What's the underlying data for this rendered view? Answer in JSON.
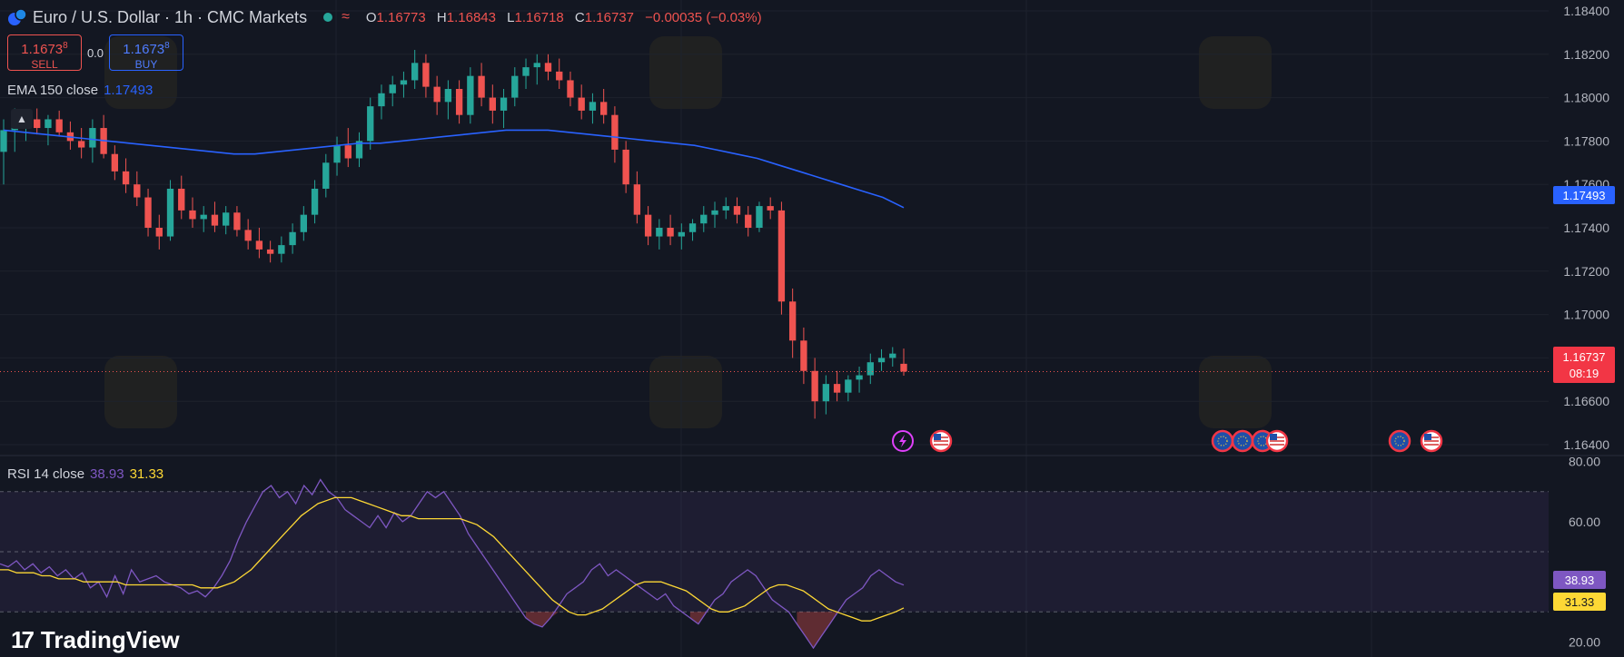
{
  "header": {
    "title": "Euro / U.S. Dollar · 1h · CMC Markets",
    "o_label": "O",
    "o": "1.16773",
    "h_label": "H",
    "h": "1.16843",
    "l_label": "L",
    "l": "1.16718",
    "c_label": "C",
    "c": "1.16737",
    "change": "−0.00035 (−0.03%)"
  },
  "trade": {
    "sell_price": "1.1673",
    "sell_sup": "8",
    "sell_label": "SELL",
    "spread": "0.0",
    "buy_price": "1.1673",
    "buy_sup": "8",
    "buy_label": "BUY"
  },
  "ema": {
    "label": "EMA 150 close",
    "value": "1.17493"
  },
  "rsi": {
    "label": "RSI 14 close",
    "value": "38.93",
    "ma_value": "31.33"
  },
  "badges": {
    "ema_price": "1.17493",
    "current_price": "1.16737",
    "countdown": "08:19",
    "rsi_value": "38.93",
    "rsi_ma": "31.33"
  },
  "logo": {
    "text": "TradingView",
    "mark": "17"
  },
  "colors": {
    "background": "#131722",
    "up": "#26a69a",
    "down": "#ef5350",
    "ema": "#2962ff",
    "rsi": "#7e57c2",
    "rsi_ma": "#fdd835"
  },
  "chart_data": {
    "type": "candlestick",
    "symbol": "Euro / U.S. Dollar",
    "timeframe": "1h",
    "price_axis": {
      "ticks": [
        1.164,
        1.166,
        1.168,
        1.17,
        1.172,
        1.174,
        1.176,
        1.178,
        1.18,
        1.182,
        1.184
      ],
      "tick_labels": [
        "1.16400",
        "1.16600",
        "1.16800",
        "1.17000",
        "1.17200",
        "1.17400",
        "1.17600",
        "1.17800",
        "1.18000",
        "1.18200",
        "1.18400"
      ],
      "range": [
        1.1635,
        1.1845
      ]
    },
    "candles": [
      {
        "o": 1.1775,
        "h": 1.179,
        "l": 1.176,
        "c": 1.1785
      },
      {
        "o": 1.1785,
        "h": 1.1795,
        "l": 1.1775,
        "c": 1.1788
      },
      {
        "o": 1.1788,
        "h": 1.1793,
        "l": 1.178,
        "c": 1.179
      },
      {
        "o": 1.179,
        "h": 1.1795,
        "l": 1.1783,
        "c": 1.1786
      },
      {
        "o": 1.1786,
        "h": 1.1792,
        "l": 1.1778,
        "c": 1.179
      },
      {
        "o": 1.179,
        "h": 1.1794,
        "l": 1.1782,
        "c": 1.1784
      },
      {
        "o": 1.1784,
        "h": 1.1789,
        "l": 1.1776,
        "c": 1.178
      },
      {
        "o": 1.178,
        "h": 1.1786,
        "l": 1.1772,
        "c": 1.1777
      },
      {
        "o": 1.1777,
        "h": 1.179,
        "l": 1.177,
        "c": 1.1786
      },
      {
        "o": 1.1786,
        "h": 1.1792,
        "l": 1.1772,
        "c": 1.1774
      },
      {
        "o": 1.1774,
        "h": 1.1778,
        "l": 1.1762,
        "c": 1.1766
      },
      {
        "o": 1.1766,
        "h": 1.1772,
        "l": 1.1756,
        "c": 1.176
      },
      {
        "o": 1.176,
        "h": 1.1766,
        "l": 1.175,
        "c": 1.1754
      },
      {
        "o": 1.1754,
        "h": 1.1758,
        "l": 1.1736,
        "c": 1.174
      },
      {
        "o": 1.174,
        "h": 1.1746,
        "l": 1.173,
        "c": 1.1736
      },
      {
        "o": 1.1736,
        "h": 1.1762,
        "l": 1.1734,
        "c": 1.1758
      },
      {
        "o": 1.1758,
        "h": 1.1764,
        "l": 1.1744,
        "c": 1.1748
      },
      {
        "o": 1.1748,
        "h": 1.1754,
        "l": 1.174,
        "c": 1.1744
      },
      {
        "o": 1.1744,
        "h": 1.175,
        "l": 1.1738,
        "c": 1.1746
      },
      {
        "o": 1.1746,
        "h": 1.1752,
        "l": 1.1738,
        "c": 1.1741
      },
      {
        "o": 1.1741,
        "h": 1.175,
        "l": 1.1737,
        "c": 1.1747
      },
      {
        "o": 1.1747,
        "h": 1.175,
        "l": 1.1736,
        "c": 1.1739
      },
      {
        "o": 1.1739,
        "h": 1.1744,
        "l": 1.173,
        "c": 1.1734
      },
      {
        "o": 1.1734,
        "h": 1.174,
        "l": 1.1726,
        "c": 1.173
      },
      {
        "o": 1.173,
        "h": 1.1734,
        "l": 1.1724,
        "c": 1.1728
      },
      {
        "o": 1.1728,
        "h": 1.1736,
        "l": 1.1724,
        "c": 1.1732
      },
      {
        "o": 1.1732,
        "h": 1.1742,
        "l": 1.1728,
        "c": 1.1738
      },
      {
        "o": 1.1738,
        "h": 1.175,
        "l": 1.1734,
        "c": 1.1746
      },
      {
        "o": 1.1746,
        "h": 1.1762,
        "l": 1.1742,
        "c": 1.1758
      },
      {
        "o": 1.1758,
        "h": 1.1774,
        "l": 1.1754,
        "c": 1.177
      },
      {
        "o": 1.177,
        "h": 1.1782,
        "l": 1.1764,
        "c": 1.1778
      },
      {
        "o": 1.1778,
        "h": 1.1786,
        "l": 1.1768,
        "c": 1.1772
      },
      {
        "o": 1.1772,
        "h": 1.1784,
        "l": 1.1768,
        "c": 1.178
      },
      {
        "o": 1.178,
        "h": 1.18,
        "l": 1.1776,
        "c": 1.1796
      },
      {
        "o": 1.1796,
        "h": 1.1806,
        "l": 1.179,
        "c": 1.1802
      },
      {
        "o": 1.1802,
        "h": 1.181,
        "l": 1.1796,
        "c": 1.1806
      },
      {
        "o": 1.1806,
        "h": 1.1812,
        "l": 1.18,
        "c": 1.1808
      },
      {
        "o": 1.1808,
        "h": 1.1822,
        "l": 1.1804,
        "c": 1.1816
      },
      {
        "o": 1.1816,
        "h": 1.182,
        "l": 1.18,
        "c": 1.1805
      },
      {
        "o": 1.1805,
        "h": 1.181,
        "l": 1.1792,
        "c": 1.1798
      },
      {
        "o": 1.1798,
        "h": 1.1808,
        "l": 1.179,
        "c": 1.1804
      },
      {
        "o": 1.1804,
        "h": 1.1808,
        "l": 1.1788,
        "c": 1.1792
      },
      {
        "o": 1.1792,
        "h": 1.1814,
        "l": 1.1788,
        "c": 1.181
      },
      {
        "o": 1.181,
        "h": 1.1816,
        "l": 1.1796,
        "c": 1.18
      },
      {
        "o": 1.18,
        "h": 1.1806,
        "l": 1.1788,
        "c": 1.1794
      },
      {
        "o": 1.1794,
        "h": 1.1804,
        "l": 1.1786,
        "c": 1.18
      },
      {
        "o": 1.18,
        "h": 1.1814,
        "l": 1.1796,
        "c": 1.181
      },
      {
        "o": 1.181,
        "h": 1.1818,
        "l": 1.1804,
        "c": 1.1814
      },
      {
        "o": 1.1814,
        "h": 1.182,
        "l": 1.1806,
        "c": 1.1816
      },
      {
        "o": 1.1816,
        "h": 1.182,
        "l": 1.1808,
        "c": 1.1812
      },
      {
        "o": 1.1812,
        "h": 1.1818,
        "l": 1.1804,
        "c": 1.1808
      },
      {
        "o": 1.1808,
        "h": 1.1812,
        "l": 1.1796,
        "c": 1.18
      },
      {
        "o": 1.18,
        "h": 1.1806,
        "l": 1.179,
        "c": 1.1794
      },
      {
        "o": 1.1794,
        "h": 1.1802,
        "l": 1.1788,
        "c": 1.1798
      },
      {
        "o": 1.1798,
        "h": 1.1804,
        "l": 1.1788,
        "c": 1.1792
      },
      {
        "o": 1.1792,
        "h": 1.1796,
        "l": 1.177,
        "c": 1.1776
      },
      {
        "o": 1.1776,
        "h": 1.178,
        "l": 1.1756,
        "c": 1.176
      },
      {
        "o": 1.176,
        "h": 1.1766,
        "l": 1.1742,
        "c": 1.1746
      },
      {
        "o": 1.1746,
        "h": 1.175,
        "l": 1.1732,
        "c": 1.1736
      },
      {
        "o": 1.1736,
        "h": 1.1744,
        "l": 1.173,
        "c": 1.174
      },
      {
        "o": 1.174,
        "h": 1.1746,
        "l": 1.1732,
        "c": 1.1736
      },
      {
        "o": 1.1736,
        "h": 1.1742,
        "l": 1.173,
        "c": 1.1738
      },
      {
        "o": 1.1738,
        "h": 1.1744,
        "l": 1.1734,
        "c": 1.1742
      },
      {
        "o": 1.1742,
        "h": 1.175,
        "l": 1.1738,
        "c": 1.1746
      },
      {
        "o": 1.1746,
        "h": 1.1752,
        "l": 1.174,
        "c": 1.1748
      },
      {
        "o": 1.1748,
        "h": 1.1754,
        "l": 1.1744,
        "c": 1.175
      },
      {
        "o": 1.175,
        "h": 1.1754,
        "l": 1.1742,
        "c": 1.1746
      },
      {
        "o": 1.1746,
        "h": 1.175,
        "l": 1.1736,
        "c": 1.174
      },
      {
        "o": 1.174,
        "h": 1.1752,
        "l": 1.1738,
        "c": 1.175
      },
      {
        "o": 1.175,
        "h": 1.1754,
        "l": 1.1744,
        "c": 1.1748
      },
      {
        "o": 1.1748,
        "h": 1.1752,
        "l": 1.17,
        "c": 1.1706
      },
      {
        "o": 1.1706,
        "h": 1.1712,
        "l": 1.168,
        "c": 1.1688
      },
      {
        "o": 1.1688,
        "h": 1.1694,
        "l": 1.1668,
        "c": 1.1674
      },
      {
        "o": 1.1674,
        "h": 1.168,
        "l": 1.1652,
        "c": 1.166
      },
      {
        "o": 1.166,
        "h": 1.1672,
        "l": 1.1654,
        "c": 1.1668
      },
      {
        "o": 1.1668,
        "h": 1.1674,
        "l": 1.166,
        "c": 1.1664
      },
      {
        "o": 1.1664,
        "h": 1.1672,
        "l": 1.166,
        "c": 1.167
      },
      {
        "o": 1.167,
        "h": 1.1676,
        "l": 1.1664,
        "c": 1.1672
      },
      {
        "o": 1.1672,
        "h": 1.1682,
        "l": 1.1668,
        "c": 1.1678
      },
      {
        "o": 1.1678,
        "h": 1.1684,
        "l": 1.1674,
        "c": 1.168
      },
      {
        "o": 1.168,
        "h": 1.1685,
        "l": 1.1676,
        "c": 1.1682
      },
      {
        "o": 1.16773,
        "h": 1.16843,
        "l": 1.16718,
        "c": 1.16737
      }
    ],
    "ema": {
      "name": "EMA 150 close",
      "values": [
        1.1785,
        1.1784,
        1.1783,
        1.1782,
        1.1781,
        1.178,
        1.1779,
        1.1778,
        1.1777,
        1.1776,
        1.1775,
        1.1774,
        1.1774,
        1.1775,
        1.1776,
        1.1777,
        1.1778,
        1.1779,
        1.1779,
        1.178,
        1.1781,
        1.1782,
        1.1783,
        1.1784,
        1.1785,
        1.1785,
        1.1785,
        1.1784,
        1.1783,
        1.1782,
        1.1781,
        1.178,
        1.1779,
        1.1778,
        1.1776,
        1.1774,
        1.1772,
        1.1769,
        1.1766,
        1.1763,
        1.176,
        1.1757,
        1.1754,
        1.17493
      ]
    },
    "rsi_axis": {
      "ticks": [
        20,
        40,
        60,
        80
      ],
      "tick_labels": [
        "20.00",
        "40.00",
        "60.00",
        "80.00"
      ],
      "levels": [
        30,
        50,
        70
      ],
      "range": [
        15,
        82
      ]
    },
    "rsi": {
      "name": "RSI 14 close",
      "values": [
        46,
        45,
        47,
        44,
        46,
        43,
        45,
        42,
        44,
        41,
        43,
        38,
        40,
        35,
        42,
        36,
        44,
        40,
        41,
        42,
        40,
        39,
        38,
        36,
        37,
        35,
        38,
        42,
        47,
        54,
        60,
        65,
        70,
        72,
        68,
        70,
        66,
        72,
        69,
        74,
        70,
        68,
        64,
        62,
        60,
        58,
        62,
        58,
        63,
        60,
        62,
        66,
        70,
        68,
        70,
        66,
        62,
        56,
        52,
        48,
        44,
        40,
        36,
        32,
        28,
        26,
        25,
        28,
        32,
        36,
        38,
        40,
        44,
        46,
        42,
        44,
        42,
        40,
        38,
        36,
        34,
        36,
        32,
        30,
        28,
        26,
        30,
        34,
        36,
        40,
        42,
        44,
        42,
        38,
        34,
        32,
        30,
        26,
        22,
        18,
        22,
        26,
        30,
        34,
        36,
        38,
        42,
        44,
        42,
        40,
        38.93
      ],
      "ma_name": "RSI MA",
      "ma_values": [
        44,
        44,
        43,
        43,
        43,
        42,
        42,
        41,
        41,
        41,
        40,
        40,
        40,
        40,
        40,
        39,
        39,
        39,
        39,
        39,
        39,
        39,
        39,
        39,
        38,
        38,
        38,
        39,
        40,
        42,
        44,
        47,
        50,
        53,
        56,
        59,
        62,
        64,
        66,
        67,
        68,
        68,
        68,
        67,
        66,
        65,
        64,
        63,
        62,
        62,
        61,
        61,
        61,
        61,
        61,
        61,
        60,
        59,
        57,
        55,
        52,
        49,
        46,
        43,
        40,
        37,
        34,
        32,
        30,
        29,
        29,
        30,
        31,
        33,
        35,
        37,
        39,
        40,
        40,
        40,
        39,
        38,
        37,
        35,
        33,
        31,
        30,
        30,
        31,
        32,
        34,
        36,
        38,
        39,
        39,
        38,
        37,
        35,
        33,
        31,
        30,
        29,
        28,
        27,
        27,
        28,
        29,
        30,
        31.33
      ]
    }
  }
}
